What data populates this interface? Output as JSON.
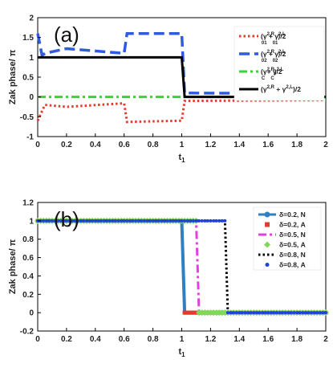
{
  "chart_data": [
    {
      "type": "line",
      "panel_label": "(a)",
      "xlabel": "t",
      "xlabel_sub": "1",
      "ylabel": "Zak phase/ π",
      "xlim": [
        0,
        2
      ],
      "ylim": [
        -1,
        2
      ],
      "xticks": [
        0,
        0.2,
        0.4,
        0.6,
        0.8,
        1,
        1.2,
        1.4,
        1.6,
        1.8,
        2
      ],
      "yticks": [
        -1,
        -0.5,
        0,
        0.5,
        1,
        1.5,
        2
      ],
      "xtick_labels": [
        "0",
        "0.2",
        "0.4",
        "0.6",
        "0.8",
        "1",
        "1.2",
        "1.4",
        "1.6",
        "1.8",
        "2"
      ],
      "ytick_labels": [
        "-1",
        "-0.5",
        "0",
        "0.5",
        "1",
        "1.5",
        "2"
      ],
      "legend_position": "top-right",
      "series": [
        {
          "legend": {
            "pre": "(γ",
            "s1": "2,R",
            "mid1": " + γ",
            "s2": "2,L",
            "post": ")/2",
            "sub": "01",
            "sub2": "01"
          },
          "color": "#e8392e",
          "style": "dotted",
          "x": [
            0,
            0.05,
            0.2,
            0.6,
            0.62,
            1.0,
            1.02,
            2.0
          ],
          "y": [
            -0.6,
            -0.2,
            -0.25,
            -0.16,
            -0.63,
            -0.6,
            -0.1,
            -0.08
          ]
        },
        {
          "legend": {
            "pre": "(γ",
            "s1": "2,R",
            "mid1": " + γ",
            "s2": "2,L",
            "post": ")/2",
            "sub": "02",
            "sub2": "02"
          },
          "color": "#2f5be0",
          "style": "dashed",
          "x": [
            0,
            0.03,
            0.05,
            0.2,
            0.6,
            0.62,
            1.0,
            1.02,
            2.0
          ],
          "y": [
            1.6,
            1.05,
            1.1,
            1.22,
            1.1,
            1.6,
            1.6,
            0.1,
            0.08
          ]
        },
        {
          "legend": {
            "pre": "(γ",
            "s1": "2,R",
            "mid1": " + γ",
            "s2": "2,L",
            "post": ")/2",
            "sub": "C",
            "sub2": "C"
          },
          "color": "#3ad13a",
          "style": "dashdot",
          "x": [
            0,
            2
          ],
          "y": [
            0,
            0
          ]
        },
        {
          "legend": {
            "pre": "(γ",
            "s1": "2,R",
            "mid1": " + γ",
            "s2": "2,L",
            "post": ")/2",
            "sub": "",
            "sub2": ""
          },
          "color": "#000000",
          "style": "solid",
          "x": [
            0,
            1.0,
            1.02,
            2.0
          ],
          "y": [
            1,
            1,
            0,
            0
          ]
        }
      ]
    },
    {
      "type": "line",
      "panel_label": "(b)",
      "xlabel": "t",
      "xlabel_sub": "1",
      "ylabel": "Zak phase/ π",
      "xlim": [
        0,
        2
      ],
      "ylim": [
        -0.2,
        1.2
      ],
      "xticks": [
        0,
        0.2,
        0.4,
        0.6,
        0.8,
        1,
        1.2,
        1.4,
        1.6,
        1.8,
        2
      ],
      "yticks": [
        -0.2,
        0,
        0.2,
        0.4,
        0.6,
        0.8,
        1,
        1.2
      ],
      "xtick_labels": [
        "0",
        "0.2",
        "0.4",
        "0.6",
        "0.8",
        "1",
        "1.2",
        "1.4",
        "1.6",
        "1.8",
        "2"
      ],
      "ytick_labels": [
        "-0.2",
        "0",
        "0.2",
        "0.4",
        "0.6",
        "0.8",
        "1",
        "1.2"
      ],
      "legend_position": "right",
      "series": [
        {
          "name": "δ=0.2, N",
          "color": "#2f7fc1",
          "style": "solid-star",
          "x": [
            0,
            1.0,
            1.02,
            2.0
          ],
          "y": [
            1,
            1,
            0,
            0
          ]
        },
        {
          "name": "δ=0.2, A",
          "color": "#e8392e",
          "style": "square-markers",
          "x_step": 1.02,
          "y": [
            1,
            0
          ]
        },
        {
          "name": "δ=0.5, N",
          "color": "#e040e0",
          "style": "dashdot",
          "x": [
            0,
            1.1,
            1.12,
            2.0
          ],
          "y": [
            1,
            1,
            0,
            0
          ]
        },
        {
          "name": "δ=0.5, A",
          "color": "#7ed957",
          "style": "diamond-markers",
          "x_step": 1.12,
          "y": [
            1,
            0
          ]
        },
        {
          "name": "δ=0.8, N",
          "color": "#000000",
          "style": "dotted",
          "x": [
            0,
            1.3,
            1.32,
            2.0
          ],
          "y": [
            1,
            1,
            0,
            0
          ]
        },
        {
          "name": "δ=0.8, A",
          "color": "#1f3fe0",
          "style": "dot-markers",
          "x_step": 1.32,
          "y": [
            1,
            0
          ]
        }
      ]
    }
  ]
}
